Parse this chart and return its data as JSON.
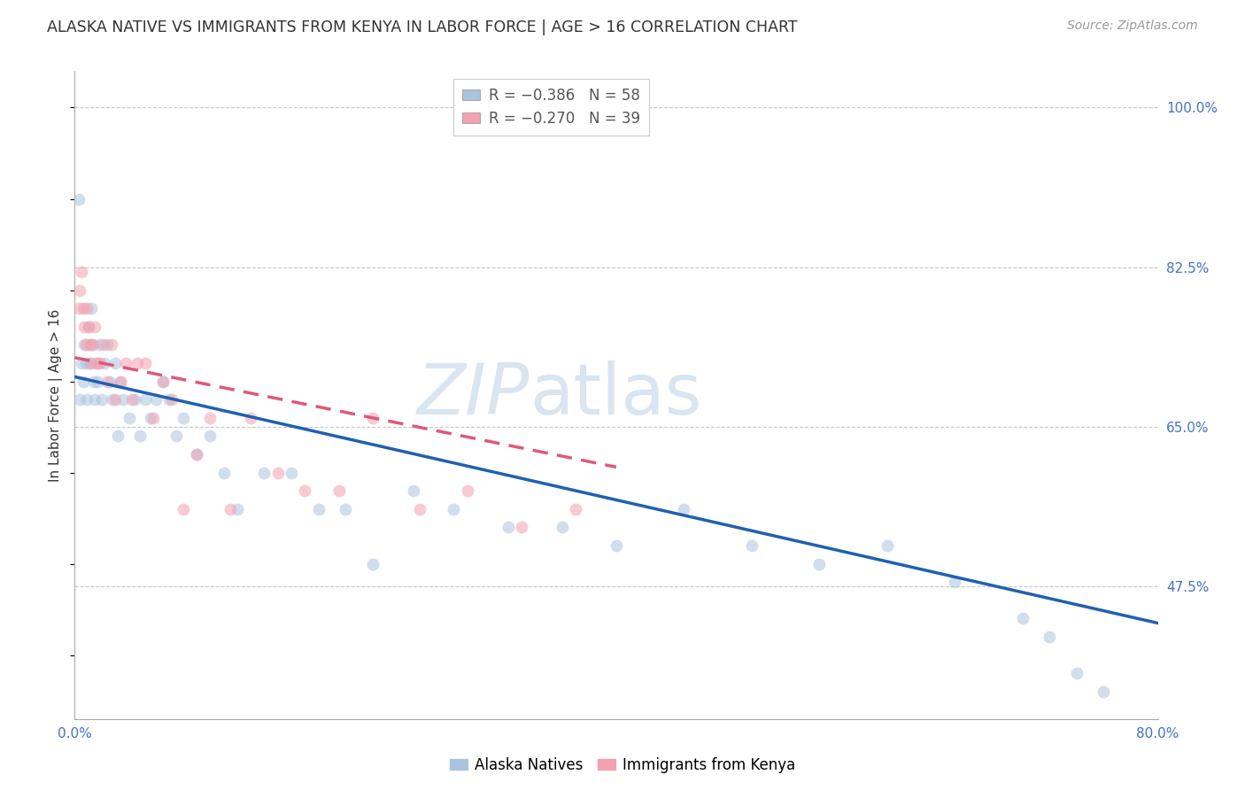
{
  "title": "ALASKA NATIVE VS IMMIGRANTS FROM KENYA IN LABOR FORCE | AGE > 16 CORRELATION CHART",
  "source_text": "Source: ZipAtlas.com",
  "ylabel": "In Labor Force | Age > 16",
  "watermark_zip": "ZIP",
  "watermark_atlas": "atlas",
  "xlim": [
    0.0,
    0.8
  ],
  "ylim": [
    0.33,
    1.04
  ],
  "xtick_positions": [
    0.0,
    0.1,
    0.2,
    0.3,
    0.4,
    0.5,
    0.6,
    0.7,
    0.8
  ],
  "xtick_labels": [
    "0.0%",
    "",
    "",
    "",
    "",
    "",
    "",
    "",
    "80.0%"
  ],
  "ytick_positions_right": [
    0.475,
    0.65,
    0.825,
    1.0
  ],
  "ytick_labels_right": [
    "47.5%",
    "65.0%",
    "82.5%",
    "100.0%"
  ],
  "grid_color": "#c8c8c8",
  "background_color": "#ffffff",
  "series": [
    {
      "label": "Alaska Natives",
      "R_label": "R = −0.386",
      "N_label": "N = 58",
      "color": "#aac4e0",
      "line_color": "#2060b0",
      "x": [
        0.003,
        0.004,
        0.005,
        0.006,
        0.007,
        0.008,
        0.009,
        0.01,
        0.011,
        0.012,
        0.013,
        0.014,
        0.015,
        0.016,
        0.017,
        0.018,
        0.02,
        0.022,
        0.024,
        0.026,
        0.028,
        0.03,
        0.032,
        0.034,
        0.036,
        0.04,
        0.044,
        0.048,
        0.052,
        0.056,
        0.06,
        0.065,
        0.07,
        0.075,
        0.08,
        0.09,
        0.1,
        0.11,
        0.12,
        0.14,
        0.16,
        0.18,
        0.2,
        0.22,
        0.25,
        0.28,
        0.32,
        0.36,
        0.4,
        0.45,
        0.5,
        0.55,
        0.6,
        0.65,
        0.7,
        0.72,
        0.74,
        0.76
      ],
      "y": [
        0.9,
        0.68,
        0.72,
        0.7,
        0.74,
        0.72,
        0.68,
        0.76,
        0.72,
        0.78,
        0.74,
        0.7,
        0.68,
        0.72,
        0.7,
        0.74,
        0.68,
        0.72,
        0.74,
        0.7,
        0.68,
        0.72,
        0.64,
        0.7,
        0.68,
        0.66,
        0.68,
        0.64,
        0.68,
        0.66,
        0.68,
        0.7,
        0.68,
        0.64,
        0.66,
        0.62,
        0.64,
        0.6,
        0.56,
        0.6,
        0.6,
        0.56,
        0.56,
        0.5,
        0.58,
        0.56,
        0.54,
        0.54,
        0.52,
        0.56,
        0.52,
        0.5,
        0.52,
        0.48,
        0.44,
        0.42,
        0.38,
        0.36
      ],
      "trend_x": [
        0.0,
        0.8
      ],
      "trend_y": [
        0.705,
        0.435
      ]
    },
    {
      "label": "Immigrants from Kenya",
      "R_label": "R = −0.270",
      "N_label": "N = 39",
      "color": "#f4a0b0",
      "line_color": "#e05878",
      "x": [
        0.003,
        0.004,
        0.005,
        0.006,
        0.007,
        0.008,
        0.009,
        0.01,
        0.011,
        0.012,
        0.013,
        0.015,
        0.017,
        0.019,
        0.021,
        0.024,
        0.027,
        0.03,
        0.034,
        0.038,
        0.042,
        0.046,
        0.052,
        0.058,
        0.065,
        0.072,
        0.08,
        0.09,
        0.1,
        0.115,
        0.13,
        0.15,
        0.17,
        0.195,
        0.22,
        0.255,
        0.29,
        0.33,
        0.37
      ],
      "y": [
        0.78,
        0.8,
        0.82,
        0.78,
        0.76,
        0.74,
        0.78,
        0.76,
        0.74,
        0.72,
        0.74,
        0.76,
        0.72,
        0.72,
        0.74,
        0.7,
        0.74,
        0.68,
        0.7,
        0.72,
        0.68,
        0.72,
        0.72,
        0.66,
        0.7,
        0.68,
        0.56,
        0.62,
        0.66,
        0.56,
        0.66,
        0.6,
        0.58,
        0.58,
        0.66,
        0.56,
        0.58,
        0.54,
        0.56
      ],
      "trend_x": [
        0.0,
        0.4
      ],
      "trend_y": [
        0.726,
        0.606
      ]
    }
  ],
  "title_fontsize": 12.5,
  "axis_label_fontsize": 11,
  "tick_fontsize": 11,
  "source_fontsize": 10,
  "legend_fontsize": 12,
  "dot_size": 100,
  "dot_alpha": 0.55,
  "line_width": 2.5
}
